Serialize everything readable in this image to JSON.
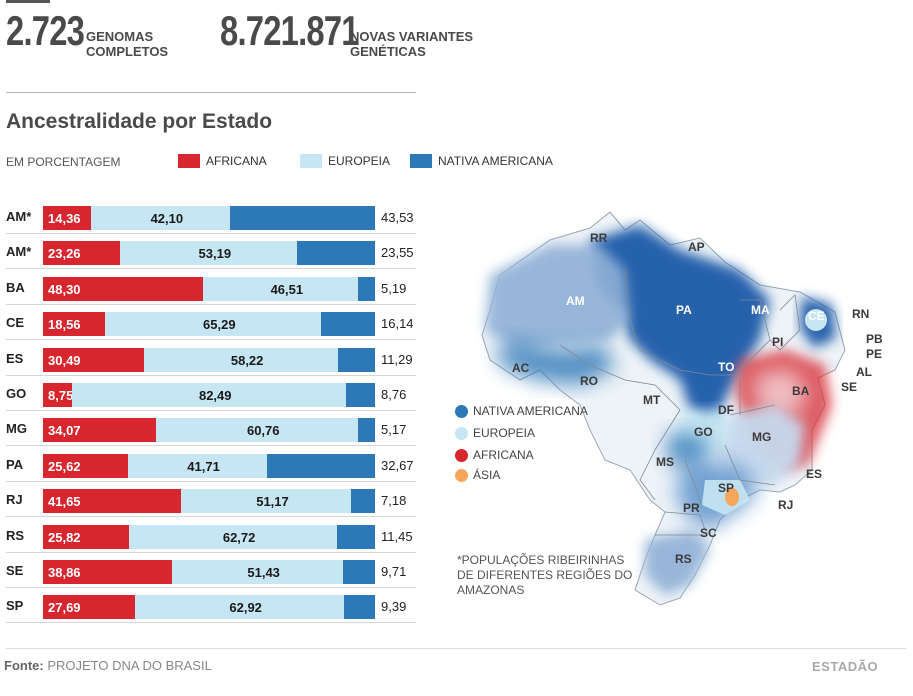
{
  "header": {
    "stat1_value": "2.723",
    "stat1_label_line1": "GENOMAS",
    "stat1_label_line2": "COMPLETOS",
    "stat2_value": "8.721.871",
    "stat2_label_line1": "NOVAS VARIANTES",
    "stat2_label_line2": "GENÉTICAS"
  },
  "section": {
    "title": "Ancestralidade por Estado",
    "subtitle": "EM PORCENTAGEM"
  },
  "legend": {
    "african": "AFRICANA",
    "european": "EUROPEIA",
    "native": "NATIVA AMERICANA"
  },
  "colors": {
    "african": "#d7262e",
    "european": "#c6e6f3",
    "native": "#2d78b7",
    "asian": "#f5a65b"
  },
  "chart_data": {
    "type": "bar",
    "stacked": true,
    "orientation": "horizontal",
    "categories": [
      "AM*",
      "AM*",
      "BA",
      "CE",
      "ES",
      "GO",
      "MG",
      "PA",
      "RJ",
      "RS",
      "SE",
      "SP"
    ],
    "series": [
      {
        "name": "AFRICANA",
        "values": [
          14.36,
          23.26,
          48.3,
          18.56,
          30.49,
          8.75,
          34.07,
          25.62,
          41.65,
          25.82,
          38.86,
          27.69
        ],
        "labels": [
          "14,36",
          "23,26",
          "48,30",
          "18,56",
          "30,49",
          "8,75",
          "34,07",
          "25,62",
          "41,65",
          "25,82",
          "38,86",
          "27,69"
        ]
      },
      {
        "name": "EUROPEIA",
        "values": [
          42.1,
          53.19,
          46.51,
          65.29,
          58.22,
          82.49,
          60.76,
          41.71,
          51.17,
          62.72,
          51.43,
          62.92
        ],
        "labels": [
          "42,10",
          "53,19",
          "46,51",
          "65,29",
          "58,22",
          "82,49",
          "60,76",
          "41,71",
          "51,17",
          "62,72",
          "51,43",
          "62,92"
        ]
      },
      {
        "name": "NATIVA AMERICANA",
        "values": [
          43.53,
          23.55,
          5.19,
          16.14,
          11.29,
          8.76,
          5.17,
          32.67,
          7.18,
          11.45,
          9.71,
          9.39
        ],
        "labels": [
          "43,53",
          "23,55",
          "5,19",
          "16,14",
          "11,29",
          "8,76",
          "5,17",
          "32,67",
          "7,18",
          "11,45",
          "9,71",
          "9,39"
        ]
      }
    ]
  },
  "map": {
    "states": [
      "RR",
      "AP",
      "AM",
      "PA",
      "MA",
      "CE",
      "RN",
      "PB",
      "PE",
      "AL",
      "PI",
      "AC",
      "RO",
      "TO",
      "BA",
      "SE",
      "MT",
      "DF",
      "GO",
      "MG",
      "ES",
      "MS",
      "SP",
      "RJ",
      "PR",
      "SC",
      "RS"
    ],
    "legend": [
      "NATIVA AMERICANA",
      "EUROPEIA",
      "AFRICANA",
      "ÁSIA"
    ],
    "footnote": "*POPULAÇÕES RIBEIRINHAS DE DIFERENTES REGIÕES DO AMAZONAS"
  },
  "footer": {
    "source_label": "Fonte:",
    "source_text": "PROJETO DNA DO BRASIL",
    "brand": "ESTADÃO"
  }
}
